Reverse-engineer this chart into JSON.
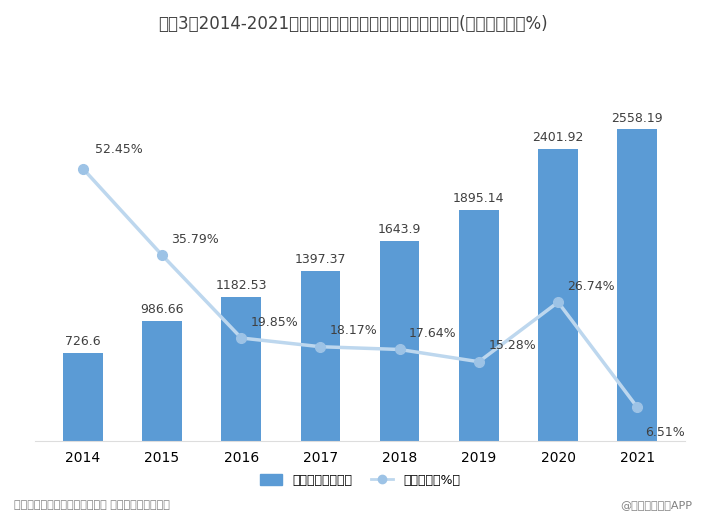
{
  "title": "图表3：2014-2021年中国自主研发游戏国内市场销售收入(单位：亿元，%)",
  "years": [
    "2014",
    "2015",
    "2016",
    "2017",
    "2018",
    "2019",
    "2020",
    "2021"
  ],
  "revenue": [
    726.6,
    986.66,
    1182.53,
    1397.37,
    1643.9,
    1895.14,
    2401.92,
    2558.19
  ],
  "growth": [
    52.45,
    35.79,
    19.85,
    18.17,
    17.64,
    15.28,
    26.74,
    6.51
  ],
  "growth_labels": [
    "52.45%",
    "35.79%",
    "19.85%",
    "18.17%",
    "17.64%",
    "15.28%",
    "26.74%",
    "6.51%"
  ],
  "revenue_labels": [
    "726.6",
    "986.66",
    "1182.53",
    "1397.37",
    "1643.9",
    "1895.14",
    "2401.92",
    "2558.19"
  ],
  "bar_color": "#5B9BD5",
  "line_color": "#BDD7EE",
  "marker_color": "#9DC3E6",
  "title_fontsize": 12,
  "label_fontsize": 9,
  "axis_fontsize": 10,
  "legend_fontsize": 9,
  "footer_fontsize": 8,
  "background_color": "#FFFFFF",
  "text_color": "#404040",
  "footer_color": "#808080",
  "footer_left": "资料来源：中国音数协游戏工委 前瞻产业研究院整理",
  "footer_right": "@前瞻经济学人APP",
  "legend_bar": "销售收入（亿元）",
  "legend_line": "同比增速（%）",
  "ylim_left": [
    0,
    3200
  ],
  "ylim_right": [
    0,
    75
  ],
  "bar_width": 0.5
}
